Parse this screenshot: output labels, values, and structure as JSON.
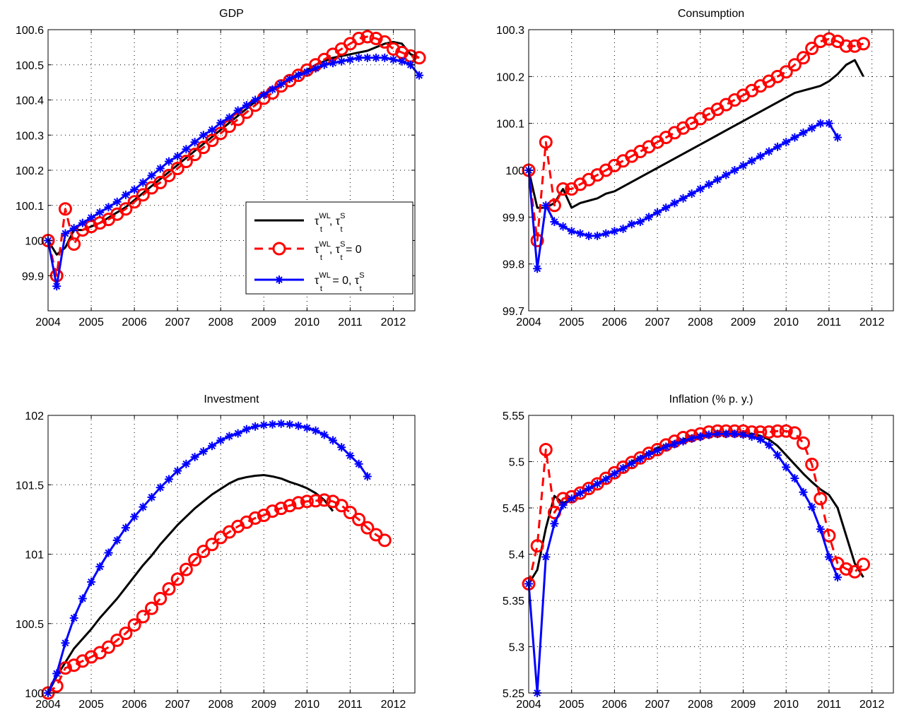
{
  "legend": {
    "entries": [
      {
        "main": "τ",
        "sup1": "WL",
        "sub1": "t",
        "mid": ", τ",
        "sup2": "S",
        "sub2": "t",
        "tail": "",
        "color": "#000000",
        "style": "solid",
        "marker": "none"
      },
      {
        "main": "τ",
        "sup1": "WL",
        "sub1": "t",
        "mid": ", τ",
        "sup2": "S",
        "sub2": "t",
        "tail": " = 0",
        "color": "#ff0000",
        "style": "dashed",
        "marker": "circle"
      },
      {
        "main": "τ",
        "sup1": "WL",
        "sub1": "t",
        "mid": " = 0, τ",
        "sup2": "S",
        "sub2": "t",
        "tail": "",
        "color": "#0000ff",
        "style": "solid",
        "marker": "star"
      }
    ]
  },
  "chart_data": [
    {
      "type": "line",
      "title": "GDP",
      "xlim": [
        2004,
        2012.5
      ],
      "ylim": [
        99.8,
        100.6
      ],
      "yticks": [
        99.9,
        100,
        100.1,
        100.2,
        100.3,
        100.4,
        100.5,
        100.6
      ],
      "ytick_labels": [
        "99.9",
        "100",
        "100.1",
        "100.2",
        "100.3",
        "100.4",
        "100.5",
        "100.6"
      ],
      "xticks": [
        2004,
        2005,
        2006,
        2007,
        2008,
        2009,
        2010,
        2011,
        2012
      ],
      "xtick_labels": [
        "2004",
        "2005",
        "2006",
        "2007",
        "2008",
        "2009",
        "2010",
        "2011",
        "2012"
      ],
      "grid": true,
      "legend_position": "right-center",
      "series": [
        {
          "values": [
            100,
            99.96,
            99.98,
            100.03,
            100.03,
            100.04,
            100.05,
            100.065,
            100.08,
            100.095,
            100.115,
            100.135,
            100.155,
            100.175,
            100.195,
            100.215,
            100.235,
            100.255,
            100.275,
            100.295,
            100.315,
            100.335,
            100.355,
            100.375,
            100.395,
            100.415,
            100.43,
            100.445,
            100.46,
            100.475,
            100.485,
            100.5,
            100.51,
            100.52,
            100.525,
            100.53,
            100.535,
            100.54,
            100.55,
            100.56,
            100.565,
            100.56,
            100.53,
            100.52
          ]
        },
        {
          "values": [
            100,
            99.9,
            100.09,
            99.99,
            100.03,
            100.04,
            100.05,
            100.06,
            100.075,
            100.09,
            100.11,
            100.13,
            100.15,
            100.165,
            100.185,
            100.205,
            100.225,
            100.245,
            100.265,
            100.285,
            100.305,
            100.325,
            100.345,
            100.365,
            100.385,
            100.405,
            100.42,
            100.44,
            100.455,
            100.47,
            100.485,
            100.5,
            100.515,
            100.53,
            100.545,
            100.56,
            100.575,
            100.58,
            100.575,
            100.565,
            100.545,
            100.535,
            100.525,
            100.52
          ]
        },
        {
          "values": [
            100,
            99.87,
            100.02,
            100.035,
            100.05,
            100.065,
            100.08,
            100.095,
            100.11,
            100.13,
            100.145,
            100.165,
            100.185,
            100.205,
            100.225,
            100.24,
            100.26,
            100.28,
            100.3,
            100.315,
            100.335,
            100.35,
            100.37,
            100.385,
            100.4,
            100.415,
            100.43,
            100.445,
            100.46,
            100.47,
            100.48,
            100.49,
            100.5,
            100.505,
            100.51,
            100.515,
            100.52,
            100.52,
            100.52,
            100.52,
            100.515,
            100.51,
            100.5,
            100.47
          ]
        }
      ]
    },
    {
      "type": "line",
      "title": "Consumption",
      "xlim": [
        2004,
        2012.5
      ],
      "ylim": [
        99.7,
        100.3
      ],
      "yticks": [
        99.7,
        99.8,
        99.9,
        100,
        100.1,
        100.2,
        100.3
      ],
      "ytick_labels": [
        "99.7",
        "99.8",
        "99.9",
        "100",
        "100.1",
        "100.2",
        "100.3"
      ],
      "xticks": [
        2004,
        2005,
        2006,
        2007,
        2008,
        2009,
        2010,
        2011,
        2012
      ],
      "xtick_labels": [
        "2004",
        "2005",
        "2006",
        "2007",
        "2008",
        "2009",
        "2010",
        "2011",
        "2012"
      ],
      "grid": true,
      "series": [
        {
          "values": [
            100,
            99.92,
            99.92,
            99.93,
            99.96,
            99.92,
            99.93,
            99.935,
            99.94,
            99.95,
            99.955,
            99.965,
            99.975,
            99.985,
            99.995,
            100.005,
            100.015,
            100.025,
            100.035,
            100.045,
            100.055,
            100.065,
            100.075,
            100.085,
            100.095,
            100.105,
            100.115,
            100.125,
            100.135,
            100.145,
            100.155,
            100.165,
            100.17,
            100.175,
            100.18,
            100.19,
            100.205,
            100.225,
            100.235,
            100.2
          ]
        },
        {
          "values": [
            100,
            99.85,
            100.06,
            99.925,
            99.96,
            99.96,
            99.97,
            99.98,
            99.99,
            100,
            100.01,
            100.02,
            100.03,
            100.04,
            100.05,
            100.06,
            100.07,
            100.08,
            100.09,
            100.1,
            100.11,
            100.12,
            100.13,
            100.14,
            100.15,
            100.16,
            100.17,
            100.18,
            100.19,
            100.2,
            100.21,
            100.225,
            100.24,
            100.26,
            100.275,
            100.28,
            100.275,
            100.265,
            100.265,
            100.27
          ]
        },
        {
          "values": [
            100,
            99.79,
            99.925,
            99.89,
            99.88,
            99.87,
            99.865,
            99.86,
            99.86,
            99.865,
            99.87,
            99.875,
            99.885,
            99.89,
            99.9,
            99.91,
            99.92,
            99.93,
            99.94,
            99.95,
            99.96,
            99.97,
            99.98,
            99.99,
            100,
            100.01,
            100.02,
            100.03,
            100.04,
            100.05,
            100.06,
            100.07,
            100.08,
            100.09,
            100.1,
            100.1,
            100.07
          ]
        }
      ]
    },
    {
      "type": "line",
      "title": "Investment",
      "xlim": [
        2004,
        2012.5
      ],
      "ylim": [
        100,
        102
      ],
      "yticks": [
        100,
        100.5,
        101,
        101.5,
        102
      ],
      "ytick_labels": [
        "100",
        "100.5",
        "101",
        "101.5",
        "102"
      ],
      "xticks": [
        2004,
        2005,
        2006,
        2007,
        2008,
        2009,
        2010,
        2011,
        2012
      ],
      "xtick_labels": [
        "2004",
        "2005",
        "2006",
        "2007",
        "2008",
        "2009",
        "2010",
        "2011",
        "2012"
      ],
      "grid": true,
      "series": [
        {
          "values": [
            100,
            100.12,
            100.22,
            100.32,
            100.39,
            100.46,
            100.54,
            100.61,
            100.68,
            100.76,
            100.84,
            100.92,
            100.99,
            101.07,
            101.14,
            101.21,
            101.27,
            101.33,
            101.38,
            101.43,
            101.47,
            101.51,
            101.54,
            101.555,
            101.565,
            101.57,
            101.56,
            101.545,
            101.52,
            101.5,
            101.475,
            101.44,
            101.39,
            101.31
          ]
        },
        {
          "values": [
            100,
            100.05,
            100.18,
            100.2,
            100.23,
            100.26,
            100.29,
            100.33,
            100.38,
            100.43,
            100.49,
            100.55,
            100.61,
            100.68,
            100.75,
            100.82,
            100.89,
            100.96,
            101.02,
            101.07,
            101.12,
            101.16,
            101.2,
            101.23,
            101.26,
            101.28,
            101.31,
            101.33,
            101.35,
            101.37,
            101.38,
            101.385,
            101.39,
            101.38,
            101.35,
            101.3,
            101.25,
            101.19,
            101.14,
            101.1
          ]
        },
        {
          "values": [
            100,
            100.14,
            100.36,
            100.54,
            100.68,
            100.8,
            100.91,
            101.01,
            101.1,
            101.19,
            101.27,
            101.34,
            101.41,
            101.48,
            101.54,
            101.6,
            101.65,
            101.7,
            101.74,
            101.78,
            101.82,
            101.85,
            101.87,
            101.9,
            101.92,
            101.93,
            101.935,
            101.94,
            101.935,
            101.925,
            101.91,
            101.89,
            101.86,
            101.82,
            101.77,
            101.71,
            101.65,
            101.56
          ]
        }
      ]
    },
    {
      "type": "line",
      "title": "Inflation (% p. y.)",
      "xlim": [
        2004,
        2012.5
      ],
      "ylim": [
        5.25,
        5.55
      ],
      "yticks": [
        5.25,
        5.3,
        5.35,
        5.4,
        5.45,
        5.5,
        5.55
      ],
      "ytick_labels": [
        "5.25",
        "5.3",
        "5.35",
        "5.4",
        "5.45",
        "5.5",
        "5.55"
      ],
      "xticks": [
        2004,
        2005,
        2006,
        2007,
        2008,
        2009,
        2010,
        2011,
        2012
      ],
      "xtick_labels": [
        "2004",
        "2005",
        "2006",
        "2007",
        "2008",
        "2009",
        "2010",
        "2011",
        "2012"
      ],
      "grid": true,
      "series": [
        {
          "values": [
            5.368,
            5.383,
            5.428,
            5.463,
            5.455,
            5.46,
            5.465,
            5.47,
            5.476,
            5.482,
            5.488,
            5.494,
            5.5,
            5.505,
            5.51,
            5.515,
            5.518,
            5.521,
            5.524,
            5.527,
            5.529,
            5.53,
            5.531,
            5.532,
            5.532,
            5.531,
            5.53,
            5.528,
            5.524,
            5.517,
            5.507,
            5.497,
            5.487,
            5.478,
            5.47,
            5.464,
            5.45,
            5.42,
            5.39,
            5.375
          ]
        },
        {
          "values": [
            5.368,
            5.409,
            5.513,
            5.445,
            5.46,
            5.462,
            5.466,
            5.471,
            5.476,
            5.482,
            5.488,
            5.494,
            5.499,
            5.504,
            5.509,
            5.513,
            5.518,
            5.522,
            5.526,
            5.528,
            5.53,
            5.532,
            5.533,
            5.533,
            5.533,
            5.533,
            5.532,
            5.532,
            5.532,
            5.533,
            5.533,
            5.531,
            5.52,
            5.497,
            5.46,
            5.42,
            5.39,
            5.384,
            5.381,
            5.389
          ]
        },
        {
          "values": [
            5.368,
            5.25,
            5.397,
            5.433,
            5.453,
            5.46,
            5.466,
            5.471,
            5.476,
            5.481,
            5.487,
            5.493,
            5.498,
            5.503,
            5.508,
            5.512,
            5.516,
            5.519,
            5.522,
            5.525,
            5.527,
            5.529,
            5.53,
            5.53,
            5.53,
            5.529,
            5.527,
            5.524,
            5.518,
            5.507,
            5.494,
            5.482,
            5.467,
            5.451,
            5.427,
            5.397,
            5.375
          ]
        }
      ]
    }
  ]
}
